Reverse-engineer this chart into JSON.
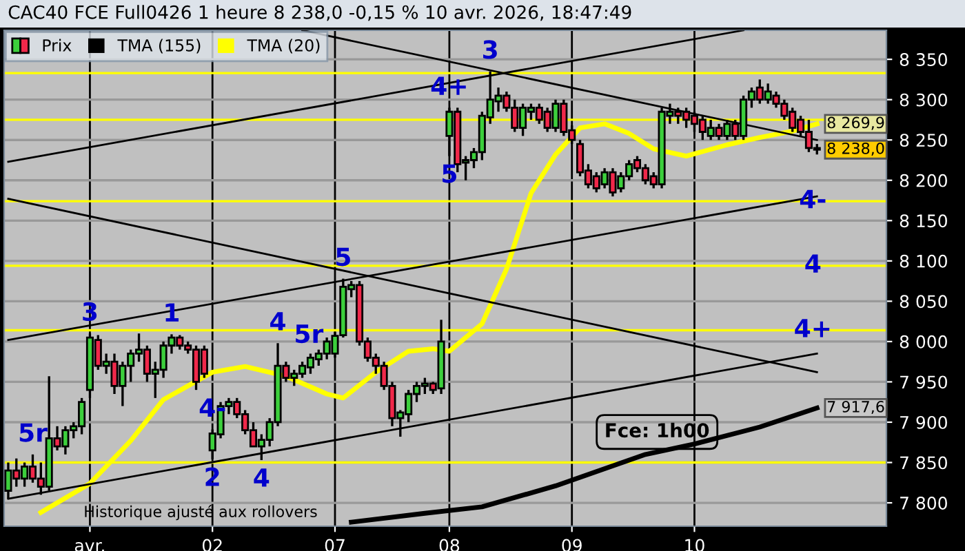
{
  "chart_data": {
    "type": "candlestick",
    "title": "CAC40 FCE Full0426 1 heure 8 238,0 -0,15 % 10 avr. 2026, 18:47:49",
    "annotations": [
      {
        "text": "1",
        "y": 8009
      },
      {
        "text": "2",
        "y": 7854
      },
      {
        "text": "3",
        "y": 8335
      },
      {
        "text": "4-",
        "y": 7891
      },
      {
        "text": "4",
        "y": 7853
      },
      {
        "text": "3",
        "y": 8010
      },
      {
        "text": "5r",
        "y": 7860
      },
      {
        "text": "4",
        "y": 7998
      },
      {
        "text": "5",
        "y": 8078
      },
      {
        "text": "5r",
        "y": 8007
      },
      {
        "text": "4+",
        "y": 8290
      },
      {
        "text": "5",
        "y": 8230
      },
      {
        "text": "4-",
        "y": 8174
      },
      {
        "text": "4",
        "y": 8094
      },
      {
        "text": "4+",
        "y": 8014
      },
      "Fce: 1h00",
      "Historique ajusté aux rollovers"
    ],
    "categories": [
      null,
      null,
      null,
      null,
      null,
      null,
      null,
      null,
      null,
      null,
      "avr.",
      null,
      null,
      null,
      null,
      null,
      null,
      null,
      null,
      null,
      null,
      null,
      null,
      null,
      null,
      "02",
      null,
      null,
      null,
      null,
      null,
      null,
      null,
      null,
      null,
      null,
      null,
      null,
      null,
      null,
      "07",
      null,
      null,
      null,
      null,
      null,
      null,
      null,
      null,
      null,
      null,
      null,
      null,
      null,
      "08",
      null,
      null,
      null,
      null,
      null,
      null,
      null,
      null,
      null,
      null,
      null,
      null,
      null,
      null,
      "09",
      null,
      null,
      null,
      null,
      null,
      null,
      null,
      null,
      null,
      null,
      null,
      null,
      null,
      null,
      "10",
      null,
      null,
      null,
      null,
      null,
      null,
      null,
      null,
      null,
      null,
      null,
      null,
      null,
      null,
      null
    ],
    "ylim": [
      7771,
      8386
    ],
    "yticks": [
      {
        "value": 7800,
        "label": "7 800"
      },
      {
        "value": 7850,
        "label": "7 850"
      },
      {
        "value": 7900,
        "label": "7 900"
      },
      {
        "value": 7950,
        "label": "7 950"
      },
      {
        "value": 8000,
        "label": "8 000"
      },
      {
        "value": 8050,
        "label": "8 050"
      },
      {
        "value": 8100,
        "label": "8 100"
      },
      {
        "value": 8150,
        "label": "8 150"
      },
      {
        "value": 8200,
        "label": "8 200"
      },
      {
        "value": 8250,
        "label": "8 250"
      },
      {
        "value": 8300,
        "label": "8 300"
      },
      {
        "value": 8350,
        "label": "8 350"
      }
    ],
    "grid": true,
    "legend": "top left",
    "ref_lines": [
      {
        "axis": "y",
        "value": 8333,
        "color": "#ffff00"
      },
      {
        "axis": "y",
        "value": 8275,
        "color": "#ffff00"
      },
      {
        "axis": "y",
        "value": 8174,
        "color": "#ffff00"
      },
      {
        "axis": "y",
        "value": 8094,
        "color": "#ffff00"
      },
      {
        "axis": "y",
        "value": 8014,
        "color": "#ffff00"
      },
      {
        "axis": "y",
        "value": 7850,
        "color": "#ffff00"
      }
    ],
    "series": [
      {
        "name": "Prix",
        "colors": [
          "#3ccf3c",
          "#f0284a",
          "#3ccf3c",
          "#f0284a",
          "#f0284a",
          "#3ccf3c",
          "#f0284a",
          "#3ccf3c",
          "#3ccf3c",
          "#3ccf3c",
          "#3ccf3c",
          "#f0284a",
          "#3ccf3c",
          "#f0284a",
          "#3ccf3c",
          "#3ccf3c",
          "#3ccf3c",
          "#f0284a",
          "#3ccf3c",
          "#3ccf3c",
          "#3ccf3c",
          "#f0284a",
          "#f0284a",
          "#f0284a",
          "#f0284a",
          "#3ccf3c",
          "#3ccf3c",
          "#3ccf3c",
          "#f0284a",
          "#f0284a",
          "#f0284a",
          "#3ccf3c",
          "#3ccf3c",
          "#3ccf3c",
          "#f0284a",
          "#3ccf3c",
          "#3ccf3c",
          "#3ccf3c",
          "#3ccf3c",
          "#3ccf3c",
          "#3ccf3c",
          "#3ccf3c",
          "#3ccf3c",
          "#f0284a",
          "#f0284a",
          "#f0284a",
          "#f0284a",
          "#f0284a",
          "#3ccf3c",
          "#3ccf3c",
          "#3ccf3c",
          "#3ccf3c",
          "#f0284a",
          "#3ccf3c",
          "#3ccf3c",
          "#f0284a",
          "#3ccf3c",
          "#3ccf3c",
          "#3ccf3c",
          "#3ccf3c",
          "#3ccf3c",
          "#f0284a",
          "#f0284a",
          "#3ccf3c",
          "#3ccf3c",
          "#f0284a",
          "#f0284a",
          "#3ccf3c",
          "#f0284a",
          "#f0284a",
          "#f0284a",
          "#f0284a",
          "#f0284a",
          "#3ccf3c",
          "#f0284a",
          "#3ccf3c",
          "#3ccf3c",
          "#f0284a",
          "#f0284a",
          "#f0284a",
          "#3ccf3c",
          "#3ccf3c",
          "#f0284a",
          "#f0284a",
          "#f0284a",
          "#f0284a",
          "#3ccf3c",
          "#f0284a",
          "#3ccf3c",
          "#f0284a",
          "#3ccf3c",
          "#3ccf3c",
          "#f0284a",
          "#3ccf3c",
          "#f0284a",
          "#f0284a",
          "#f0284a",
          "#f0284a",
          "#f0284a",
          "#f0284a"
        ],
        "value_labels": [
          null,
          null,
          null,
          null,
          null,
          null,
          null,
          null,
          null,
          null,
          null,
          null,
          null,
          null,
          null,
          null,
          null,
          null,
          null,
          null,
          null,
          null,
          null,
          null,
          null,
          null,
          null,
          null,
          null,
          null,
          null,
          null,
          null,
          null,
          null,
          null,
          null,
          null,
          null,
          null,
          null,
          null,
          null,
          null,
          null,
          null,
          null,
          null,
          null,
          null,
          null,
          null,
          null,
          null,
          null,
          null,
          null,
          null,
          null,
          null,
          null,
          null,
          null,
          null,
          null,
          null,
          null,
          null,
          null,
          null,
          null,
          null,
          null,
          null,
          null,
          null,
          null,
          null,
          null,
          null,
          null,
          null,
          null,
          null,
          null,
          null,
          null,
          null,
          null,
          null,
          null,
          null,
          null,
          null,
          null,
          null,
          null,
          null,
          null,
          "8 238,0"
        ],
        "ohlc": [
          [
            7815,
            7850,
            7805,
            7840
          ],
          [
            7840,
            7855,
            7820,
            7830
          ],
          [
            7830,
            7850,
            7820,
            7845
          ],
          [
            7845,
            7860,
            7825,
            7830
          ],
          [
            7830,
            7850,
            7810,
            7820
          ],
          [
            7820,
            7957,
            7815,
            7880
          ],
          [
            7880,
            7895,
            7865,
            7870
          ],
          [
            7870,
            7895,
            7860,
            7890
          ],
          [
            7890,
            7900,
            7880,
            7895
          ],
          [
            7895,
            7930,
            7885,
            7925
          ],
          [
            7940,
            8010,
            7930,
            8005
          ],
          [
            8002,
            8008,
            7965,
            7970
          ],
          [
            7970,
            7985,
            7960,
            7975
          ],
          [
            7975,
            7985,
            7935,
            7945
          ],
          [
            7945,
            7975,
            7920,
            7970
          ],
          [
            7970,
            7990,
            7950,
            7985
          ],
          [
            7985,
            8010,
            7975,
            7990
          ],
          [
            7990,
            7995,
            7950,
            7960
          ],
          [
            7960,
            7975,
            7930,
            7965
          ],
          [
            7965,
            8000,
            7955,
            7995
          ],
          [
            7995,
            8009,
            7985,
            8005
          ],
          [
            8005,
            8008,
            7990,
            7995
          ],
          [
            7995,
            8000,
            7985,
            7990
          ],
          [
            7990,
            7995,
            7940,
            7950
          ],
          [
            7990,
            7995,
            7955,
            7960
          ],
          [
            7865,
            7891,
            7854,
            7886
          ],
          [
            7885,
            7925,
            7880,
            7920
          ],
          [
            7920,
            7930,
            7910,
            7925
          ],
          [
            7925,
            7930,
            7905,
            7910
          ],
          [
            7910,
            7915,
            7885,
            7890
          ],
          [
            7890,
            7900,
            7870,
            7870
          ],
          [
            7870,
            7885,
            7853,
            7878
          ],
          [
            7878,
            7905,
            7870,
            7900
          ],
          [
            7900,
            7998,
            7895,
            7970
          ],
          [
            7970,
            7975,
            7950,
            7955
          ],
          [
            7955,
            7965,
            7945,
            7960
          ],
          [
            7960,
            7975,
            7955,
            7970
          ],
          [
            7968,
            7985,
            7960,
            7980
          ],
          [
            7978,
            7990,
            7970,
            7985
          ],
          [
            7985,
            8005,
            7978,
            8000
          ],
          [
            7985,
            8012,
            7980,
            8007
          ],
          [
            8008,
            8078,
            8005,
            8068
          ],
          [
            8065,
            8075,
            8055,
            8070
          ],
          [
            8070,
            8075,
            7995,
            8000
          ],
          [
            8000,
            8005,
            7975,
            7980
          ],
          [
            7980,
            7985,
            7960,
            7970
          ],
          [
            7970,
            7975,
            7940,
            7945
          ],
          [
            7945,
            7950,
            7895,
            7905
          ],
          [
            7905,
            7915,
            7882,
            7912
          ],
          [
            7910,
            7940,
            7900,
            7935
          ],
          [
            7935,
            7950,
            7925,
            7945
          ],
          [
            7945,
            7955,
            7935,
            7948
          ],
          [
            7948,
            7950,
            7935,
            7940
          ],
          [
            7942,
            8027,
            7935,
            8000
          ],
          [
            8255,
            8290,
            8230,
            8285
          ],
          [
            8285,
            8290,
            8210,
            8220
          ],
          [
            8222,
            8230,
            8200,
            8225
          ],
          [
            8225,
            8240,
            8215,
            8235
          ],
          [
            8235,
            8285,
            8225,
            8280
          ],
          [
            8278,
            8335,
            8270,
            8300
          ],
          [
            8298,
            8315,
            8285,
            8305
          ],
          [
            8305,
            8310,
            8285,
            8290
          ],
          [
            8290,
            8300,
            8260,
            8265
          ],
          [
            8265,
            8295,
            8255,
            8290
          ],
          [
            8285,
            8295,
            8275,
            8290
          ],
          [
            8290,
            8295,
            8270,
            8275
          ],
          [
            8285,
            8290,
            8260,
            8265
          ],
          [
            8265,
            8300,
            8260,
            8295
          ],
          [
            8295,
            8300,
            8255,
            8260
          ],
          [
            8262,
            8268,
            8245,
            8250
          ],
          [
            8245,
            8250,
            8205,
            8210
          ],
          [
            8212,
            8220,
            8190,
            8195
          ],
          [
            8205,
            8210,
            8185,
            8190
          ],
          [
            8195,
            8215,
            8190,
            8210
          ],
          [
            8210,
            8215,
            8180,
            8185
          ],
          [
            8190,
            8210,
            8185,
            8205
          ],
          [
            8205,
            8225,
            8200,
            8220
          ],
          [
            8225,
            8230,
            8210,
            8215
          ],
          [
            8215,
            8220,
            8195,
            8200
          ],
          [
            8205,
            8210,
            8190,
            8195
          ],
          [
            8195,
            8290,
            8190,
            8285
          ],
          [
            8280,
            8295,
            8270,
            8285
          ],
          [
            8285,
            8290,
            8270,
            8280
          ],
          [
            8285,
            8290,
            8265,
            8275
          ],
          [
            8280,
            8285,
            8260,
            8270
          ],
          [
            8275,
            8280,
            8250,
            8260
          ],
          [
            8255,
            8275,
            8250,
            8265
          ],
          [
            8265,
            8270,
            8250,
            8255
          ],
          [
            8255,
            8275,
            8250,
            8270
          ],
          [
            8270,
            8275,
            8250,
            8255
          ],
          [
            8255,
            8305,
            8250,
            8300
          ],
          [
            8300,
            8315,
            8290,
            8310
          ],
          [
            8315,
            8325,
            8295,
            8300
          ],
          [
            8300,
            8320,
            8295,
            8310
          ],
          [
            8305,
            8310,
            8290,
            8295
          ],
          [
            8295,
            8300,
            8275,
            8280
          ],
          [
            8285,
            8290,
            8260,
            8265
          ],
          [
            8275,
            8280,
            8255,
            8260
          ],
          [
            8260,
            8275,
            8235,
            8240
          ],
          [
            8240,
            8245,
            8232,
            8238.0
          ]
        ]
      },
      {
        "name": "TMA (155)",
        "type": "line",
        "color": "#000000",
        "value_labels": [
          null,
          null,
          null,
          null,
          null,
          null,
          null,
          null,
          null,
          null,
          null,
          null,
          null,
          null,
          null,
          null,
          null,
          null,
          null,
          null,
          null,
          null,
          null,
          null,
          null,
          null,
          null,
          null,
          null,
          null,
          null,
          null,
          null,
          null,
          null,
          null,
          null,
          null,
          null,
          null,
          null,
          null,
          null,
          null,
          null,
          null,
          null,
          null,
          null,
          null,
          null,
          null,
          null,
          null,
          null,
          null,
          null,
          null,
          null,
          null,
          null,
          null,
          null,
          null,
          null,
          null,
          null,
          null,
          null,
          null,
          null,
          null,
          null,
          null,
          null,
          null,
          null,
          null,
          null,
          null,
          null,
          null,
          null,
          null,
          null,
          null,
          null,
          null,
          null,
          null,
          null,
          null,
          null,
          null,
          null,
          null,
          null,
          null,
          null,
          "7 917,6"
        ],
        "values": [
          null,
          null,
          null,
          null,
          null,
          null,
          null,
          null,
          null,
          null,
          null,
          null,
          null,
          null,
          null,
          null,
          null,
          null,
          null,
          null,
          null,
          null,
          null,
          null,
          null,
          null,
          null,
          null,
          null,
          null,
          null,
          null,
          null,
          null,
          null,
          null,
          null,
          null,
          null,
          null,
          null,
          null,
          7776,
          null,
          null,
          null,
          null,
          null,
          null,
          null,
          null,
          7787,
          null,
          null,
          null,
          null,
          null,
          null,
          7795,
          null,
          null,
          null,
          null,
          null,
          null,
          null,
          null,
          7821,
          null,
          null,
          null,
          null,
          null,
          null,
          null,
          null,
          null,
          null,
          7860,
          null,
          null,
          null,
          null,
          null,
          7873,
          null,
          null,
          null,
          null,
          null,
          null,
          null,
          7894,
          null,
          null,
          null,
          null,
          null,
          null,
          7917.6
        ]
      },
      {
        "name": "TMA (20)",
        "type": "line",
        "color": "#ffff00",
        "value_labels": [
          null,
          null,
          null,
          null,
          null,
          null,
          null,
          null,
          null,
          null,
          null,
          null,
          null,
          null,
          null,
          null,
          null,
          null,
          null,
          null,
          null,
          null,
          null,
          null,
          null,
          null,
          null,
          null,
          null,
          null,
          null,
          null,
          null,
          null,
          null,
          null,
          null,
          null,
          null,
          null,
          null,
          null,
          null,
          null,
          null,
          null,
          null,
          null,
          null,
          null,
          null,
          null,
          null,
          null,
          null,
          null,
          null,
          null,
          null,
          null,
          null,
          null,
          null,
          null,
          null,
          null,
          null,
          null,
          null,
          null,
          null,
          null,
          null,
          null,
          null,
          null,
          null,
          null,
          null,
          null,
          null,
          null,
          null,
          null,
          null,
          null,
          null,
          null,
          null,
          null,
          null,
          null,
          null,
          null,
          null,
          null,
          null,
          null,
          null,
          "8 269,9"
        ],
        "values": [
          null,
          null,
          null,
          null,
          7788,
          null,
          null,
          null,
          null,
          null,
          7824,
          null,
          null,
          null,
          null,
          7877,
          null,
          null,
          null,
          7928,
          null,
          null,
          null,
          null,
          null,
          7962,
          null,
          null,
          null,
          7969,
          null,
          null,
          null,
          null,
          7957,
          null,
          null,
          null,
          null,
          7935,
          null,
          7930,
          null,
          null,
          null,
          7962,
          null,
          null,
          null,
          7988,
          null,
          null,
          7991,
          null,
          7988,
          null,
          null,
          null,
          8022,
          null,
          null,
          8090,
          null,
          null,
          8184,
          null,
          null,
          8232,
          null,
          null,
          8265,
          null,
          null,
          8270,
          null,
          null,
          8258,
          null,
          null,
          8239,
          null,
          null,
          null,
          8230,
          null,
          null,
          null,
          null,
          8244,
          null,
          null,
          null,
          8253,
          null,
          null,
          null,
          8261,
          null,
          null,
          8269.9
        ]
      },
      {
        "type": "line",
        "color": "#000000",
        "values": [
          8223,
          null,
          null,
          null,
          null,
          null,
          null,
          null,
          null,
          null,
          null,
          null,
          null,
          null,
          null,
          null,
          null,
          null,
          null,
          null,
          null,
          null,
          null,
          null,
          null,
          null,
          null,
          null,
          null,
          null,
          null,
          null,
          null,
          null,
          null,
          null,
          null,
          null,
          null,
          null,
          null,
          null,
          null,
          null,
          null,
          null,
          null,
          null,
          null,
          null,
          null,
          null,
          null,
          null,
          null,
          null,
          null,
          null,
          null,
          null,
          null,
          null,
          null,
          null,
          null,
          null,
          null,
          null,
          null,
          null,
          null,
          null,
          null,
          null,
          null,
          null,
          null,
          null,
          null,
          null,
          null,
          null,
          null,
          null,
          null,
          null,
          null,
          null,
          null,
          null,
          8386,
          null,
          null,
          null,
          null,
          null,
          null,
          null,
          null,
          null
        ]
      },
      {
        "type": "line",
        "color": "#000000",
        "values": [
          8177,
          null,
          null,
          null,
          null,
          null,
          null,
          null,
          null,
          null,
          null,
          null,
          null,
          null,
          null,
          null,
          null,
          null,
          null,
          null,
          null,
          null,
          null,
          null,
          null,
          null,
          null,
          null,
          null,
          null,
          null,
          null,
          null,
          null,
          null,
          null,
          null,
          null,
          null,
          null,
          null,
          null,
          null,
          null,
          null,
          null,
          null,
          null,
          null,
          null,
          null,
          null,
          null,
          null,
          null,
          null,
          null,
          null,
          null,
          null,
          null,
          null,
          null,
          null,
          null,
          null,
          null,
          null,
          null,
          null,
          null,
          null,
          null,
          null,
          null,
          null,
          null,
          null,
          null,
          null,
          null,
          null,
          null,
          null,
          null,
          null,
          null,
          null,
          null,
          null,
          null,
          null,
          null,
          null,
          null,
          null,
          null,
          null,
          null,
          7962
        ]
      },
      {
        "type": "line",
        "color": "#000000",
        "values": [
          null,
          null,
          null,
          null,
          null,
          null,
          null,
          null,
          null,
          null,
          null,
          null,
          null,
          null,
          null,
          null,
          null,
          null,
          null,
          null,
          null,
          null,
          null,
          null,
          null,
          null,
          null,
          null,
          null,
          null,
          null,
          null,
          null,
          null,
          null,
          null,
          8386,
          null,
          null,
          null,
          null,
          null,
          null,
          null,
          null,
          null,
          null,
          null,
          null,
          null,
          null,
          null,
          null,
          null,
          null,
          null,
          null,
          null,
          null,
          null,
          null,
          null,
          null,
          null,
          null,
          null,
          null,
          null,
          null,
          null,
          null,
          null,
          null,
          null,
          null,
          null,
          null,
          null,
          null,
          null,
          null,
          null,
          null,
          null,
          null,
          null,
          null,
          null,
          null,
          null,
          null,
          null,
          null,
          null,
          null,
          null,
          null,
          null,
          null,
          8250
        ]
      },
      {
        "type": "line",
        "color": "#000000",
        "values": [
          8002,
          null,
          null,
          null,
          null,
          null,
          null,
          null,
          null,
          null,
          null,
          null,
          null,
          null,
          null,
          null,
          null,
          null,
          null,
          null,
          null,
          null,
          null,
          null,
          null,
          null,
          null,
          null,
          null,
          null,
          null,
          null,
          null,
          null,
          null,
          null,
          null,
          null,
          null,
          null,
          null,
          null,
          null,
          null,
          null,
          null,
          null,
          null,
          null,
          null,
          null,
          null,
          null,
          null,
          null,
          null,
          null,
          null,
          null,
          null,
          null,
          null,
          null,
          null,
          null,
          null,
          null,
          null,
          null,
          null,
          null,
          null,
          null,
          null,
          null,
          null,
          null,
          null,
          null,
          null,
          null,
          null,
          null,
          null,
          null,
          null,
          null,
          null,
          null,
          null,
          null,
          null,
          null,
          null,
          null,
          null,
          null,
          null,
          null,
          8180
        ]
      },
      {
        "type": "line",
        "color": "#000000",
        "values": [
          7805,
          null,
          null,
          null,
          null,
          null,
          null,
          null,
          null,
          null,
          null,
          null,
          null,
          null,
          null,
          null,
          null,
          null,
          null,
          null,
          null,
          null,
          null,
          null,
          null,
          null,
          null,
          null,
          null,
          null,
          null,
          null,
          null,
          null,
          null,
          null,
          null,
          null,
          null,
          null,
          null,
          null,
          null,
          null,
          null,
          null,
          null,
          null,
          null,
          null,
          null,
          null,
          null,
          null,
          null,
          null,
          null,
          null,
          null,
          null,
          null,
          null,
          null,
          null,
          null,
          null,
          null,
          null,
          null,
          null,
          null,
          null,
          null,
          null,
          null,
          null,
          null,
          null,
          null,
          null,
          null,
          null,
          null,
          null,
          null,
          null,
          null,
          null,
          null,
          null,
          null,
          null,
          null,
          null,
          null,
          null,
          null,
          null,
          null,
          7985
        ]
      }
    ]
  }
}
